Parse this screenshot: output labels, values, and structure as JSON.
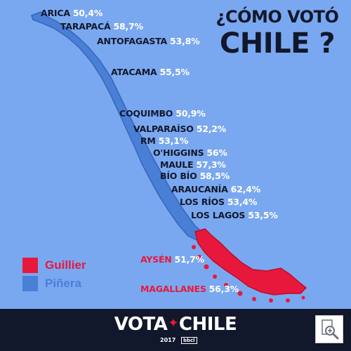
{
  "title": {
    "question": "¿CÓMO VOTÓ",
    "main": "CHILE ?"
  },
  "colors": {
    "background": "#7aa8f0",
    "pinera": "#4a7fd6",
    "pinera_stroke": "#3566bd",
    "guillier": "#e8183c",
    "guillier_stroke": "#b80f2c",
    "dark": "#11182c"
  },
  "legend": [
    {
      "label": "Guillier",
      "color": "#e8183c"
    },
    {
      "label": "Piñera",
      "color": "#4a7fd6"
    }
  ],
  "regions": [
    {
      "name": "ARICA",
      "value": "50,4%",
      "winner": "Piñera"
    },
    {
      "name": "TARAPACÁ",
      "value": "58,7%",
      "winner": "Piñera"
    },
    {
      "name": "ANTOFAGASTA",
      "value": "53,8%",
      "winner": "Piñera"
    },
    {
      "name": "ATACAMA",
      "value": "55,5%",
      "winner": "Piñera"
    },
    {
      "name": "COQUIMBO",
      "value": "50,9%",
      "winner": "Piñera"
    },
    {
      "name": "VALPARAÍSO",
      "value": "52,2%",
      "winner": "Piñera"
    },
    {
      "name": "RM",
      "value": "53,1%",
      "winner": "Piñera"
    },
    {
      "name": "O'HIGGINS",
      "value": "56%",
      "winner": "Piñera"
    },
    {
      "name": "MAULE",
      "value": "57,3%",
      "winner": "Piñera"
    },
    {
      "name": "BÍO BÍO",
      "value": "58,5%",
      "winner": "Piñera"
    },
    {
      "name": "ARAUCANÍA",
      "value": "62,4%",
      "winner": "Piñera"
    },
    {
      "name": "LOS RÍOS",
      "value": "53,4%",
      "winner": "Piñera"
    },
    {
      "name": "LOS LAGOS",
      "value": "53,5%",
      "winner": "Piñera"
    },
    {
      "name": "AYSÉN",
      "value": "51,7%",
      "winner": "Guillier"
    },
    {
      "name": "MAGALLANES",
      "value": "56,3%",
      "winner": "Guillier"
    }
  ],
  "footer": {
    "logo_left": "VOTA",
    "logo_star": "✦",
    "logo_right": "CHILE",
    "year": "2017",
    "brand": "bbcl"
  },
  "zoom_icon": "zoom-in-icon"
}
